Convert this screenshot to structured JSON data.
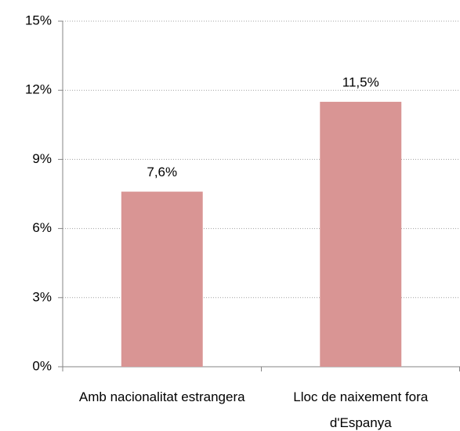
{
  "chart_data": {
    "type": "bar",
    "categories": [
      "Amb nacionalitat estrangera",
      "Lloc de naixement fora d'Espanya"
    ],
    "values": [
      7.6,
      11.5
    ],
    "value_labels": [
      "7,6%",
      "11,5%"
    ],
    "color": "#d99594",
    "ylim": [
      0,
      15
    ],
    "yticks": [
      {
        "value": 0,
        "label": "0%"
      },
      {
        "value": 3,
        "label": "3%"
      },
      {
        "value": 6,
        "label": "6%"
      },
      {
        "value": 9,
        "label": "9%"
      },
      {
        "value": 12,
        "label": "12%"
      },
      {
        "value": 15,
        "label": "15%"
      }
    ],
    "grid": true
  }
}
